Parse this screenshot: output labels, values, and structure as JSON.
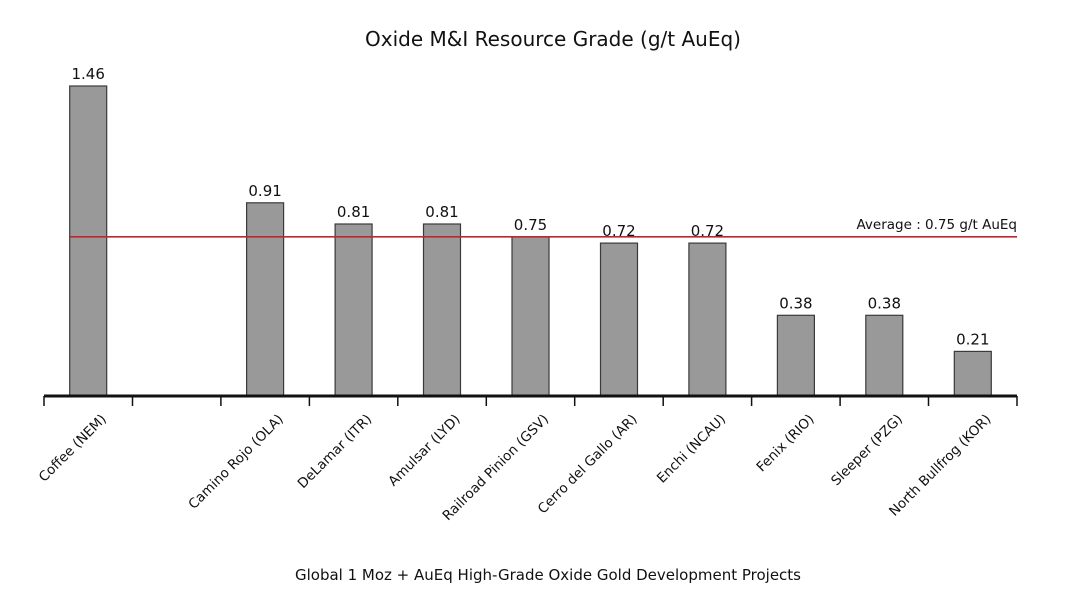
{
  "chart_data": {
    "type": "bar",
    "title": "Oxide M&I Resource Grade (g/t  AuEq)",
    "xlabel": "Global 1 Moz + AuEq High-Grade Oxide Gold Development Projects",
    "ylabel": "",
    "ylim": [
      0,
      1.6
    ],
    "grid": false,
    "legend": "none",
    "categories": [
      "Coffee (NEM)",
      "",
      "Camino Rojo (OLA)",
      "DeLamar (ITR)",
      "Amulsar (LYD)",
      "Railroad Pinion (GSV)",
      "Cerro del Gallo (AR)",
      "Enchi (NCAU)",
      "Fenix (RIO)",
      "Sleeper (PZG)",
      "North Bullfrog (KOR)"
    ],
    "values": [
      1.46,
      null,
      0.91,
      0.81,
      0.81,
      0.75,
      0.72,
      0.72,
      0.38,
      0.38,
      0.21
    ],
    "value_labels": [
      "1.46",
      "",
      "0.91",
      "0.81",
      "0.81",
      "0.75",
      "0.72",
      "0.72",
      "0.38",
      "0.38",
      "0.21"
    ],
    "average": {
      "value": 0.75,
      "label": "Average : 0.75 g/t  AuEq"
    },
    "colors": {
      "bar_fill": "#999999",
      "bar_stroke": "#3a3a3a",
      "average_line": "#c0272d",
      "axis": "#111111"
    }
  }
}
